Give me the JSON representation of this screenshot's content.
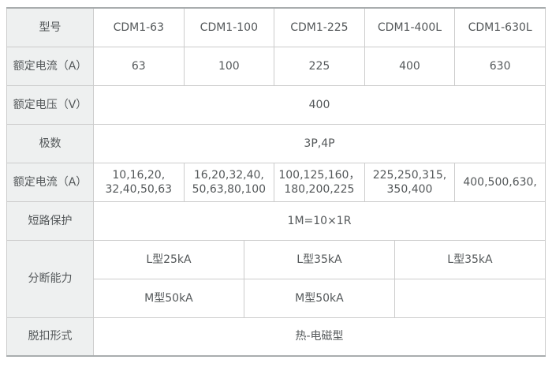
{
  "colors": {
    "label_cell_bg": "#eef0f0",
    "grid_border": "#cccccc",
    "outer_rule": "#a9adae",
    "text": "#54585a"
  },
  "table": {
    "model_row": {
      "label": "型号",
      "cells": [
        "CDM1-63",
        "CDM1-100",
        "CDM1-225",
        "CDM1-400L",
        "CDM1-630L"
      ]
    },
    "frame_current_row": {
      "label": "额定电流（A）",
      "cells": [
        "63",
        "100",
        "225",
        "400",
        "630"
      ]
    },
    "rated_voltage_row": {
      "label": "额定电压（V）",
      "value": "400"
    },
    "poles_row": {
      "label": "极数",
      "value": "3P,4P"
    },
    "current_range_row": {
      "label": "额定电流（A）",
      "cells": [
        {
          "line1": "10,16,20,",
          "line2": "32,40,50,63"
        },
        {
          "line1": "16,20,32,40,",
          "line2": "50,63,80,100"
        },
        {
          "line1": "100,125,160，",
          "line2": "180,200,225"
        },
        {
          "line1": "225,250,315,",
          "line2": "350,400"
        },
        {
          "line1": "400,500,630,",
          "line2": ""
        }
      ]
    },
    "short_circuit_row": {
      "label": "短路保护",
      "value": "1M=10×1R"
    },
    "breaking_capacity": {
      "label": "分断能力",
      "top_cells": [
        "L型25kA",
        "L型35kA",
        "L型35kA"
      ],
      "bottom_cells": [
        "M型50kA",
        "M型50kA",
        ""
      ]
    },
    "trip_type_row": {
      "label": "脱扣形式",
      "value": "热-电磁型"
    }
  }
}
